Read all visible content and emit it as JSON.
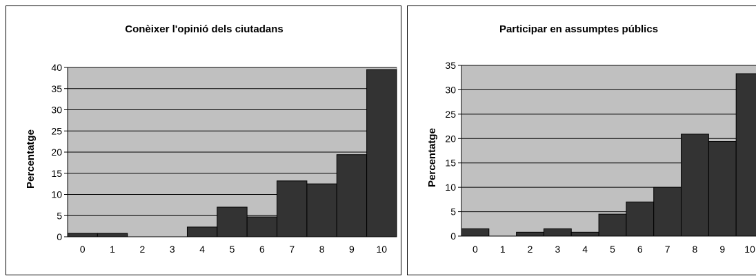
{
  "chart_data": [
    {
      "type": "bar",
      "title": "Conèixer l'opinió dels ciutadans",
      "xlabel": "",
      "ylabel": "Percentatge",
      "categories": [
        "0",
        "1",
        "2",
        "3",
        "4",
        "5",
        "6",
        "7",
        "8",
        "9",
        "10"
      ],
      "values": [
        0.8,
        0.8,
        0,
        0,
        2.3,
        7.0,
        4.7,
        13.2,
        12.5,
        19.4,
        39.5
      ],
      "ylim": [
        0,
        40
      ],
      "yticks": [
        "0",
        "5",
        "10",
        "15",
        "20",
        "25",
        "30",
        "35",
        "40"
      ],
      "grid": true,
      "colors": {
        "plot_bg": "#c0c0c0",
        "bar": "#333333",
        "grid": "#000000"
      }
    },
    {
      "type": "bar",
      "title": "Participar en assumptes públics",
      "xlabel": "",
      "ylabel": "Percentatge",
      "categories": [
        "0",
        "1",
        "2",
        "3",
        "4",
        "5",
        "6",
        "7",
        "8",
        "9",
        "10"
      ],
      "values": [
        1.5,
        0,
        0.8,
        1.5,
        0.8,
        4.5,
        7.0,
        10.0,
        20.9,
        19.4,
        33.3
      ],
      "ylim": [
        0,
        35
      ],
      "yticks": [
        "0",
        "5",
        "10",
        "15",
        "20",
        "25",
        "30",
        "35"
      ],
      "grid": true,
      "colors": {
        "plot_bg": "#c0c0c0",
        "bar": "#333333",
        "grid": "#000000"
      }
    }
  ]
}
